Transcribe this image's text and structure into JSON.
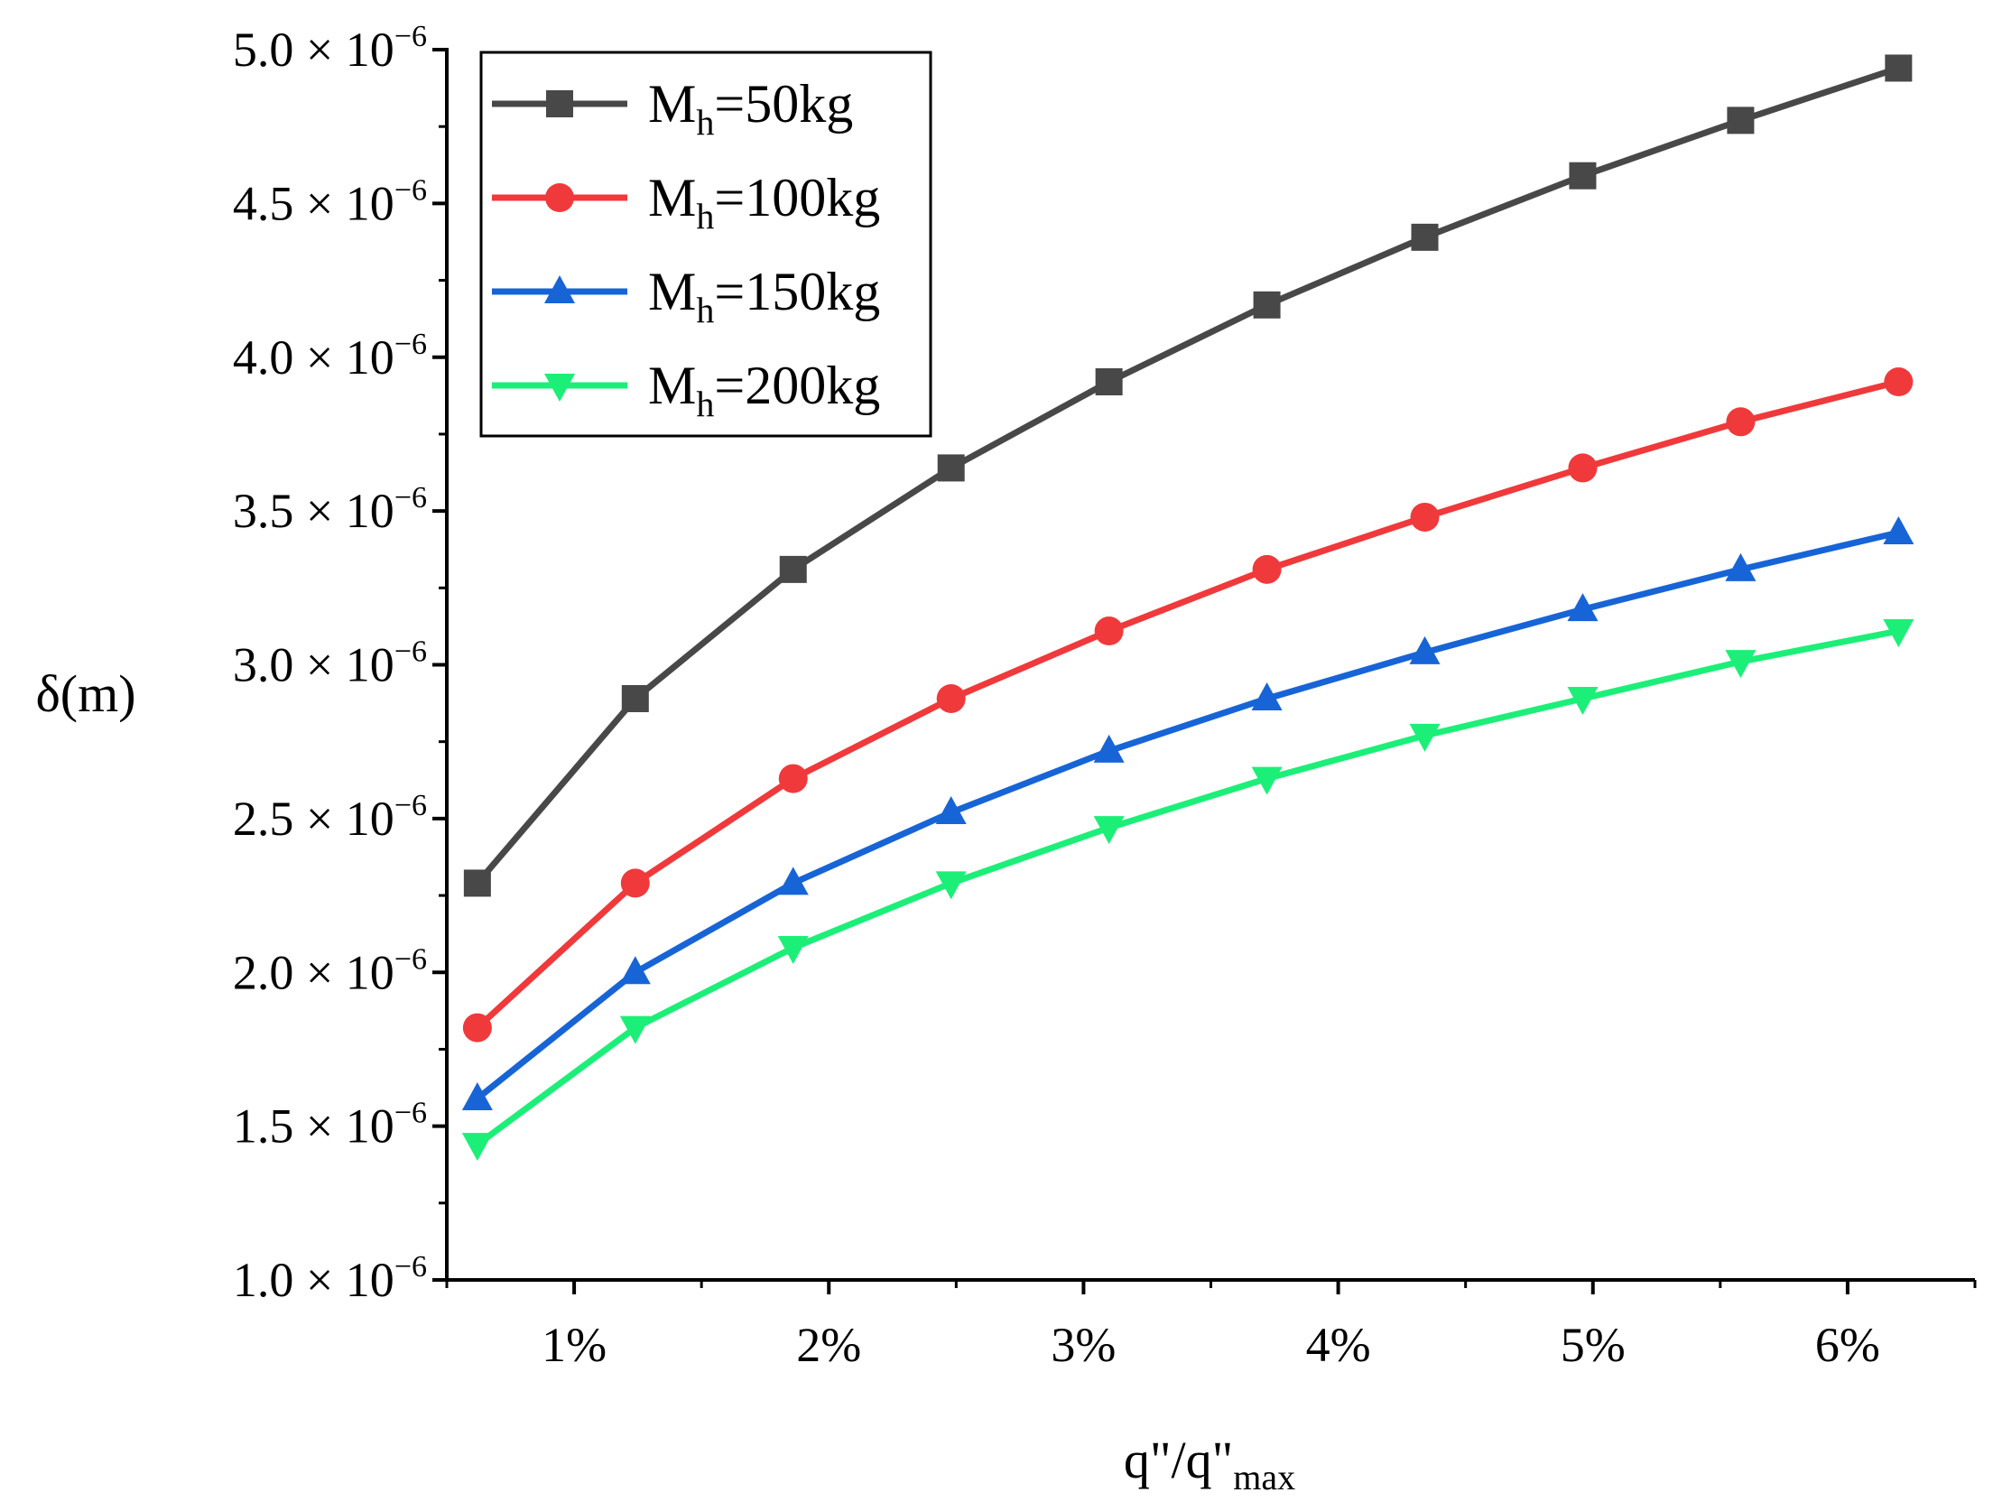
{
  "chart_data": {
    "type": "line",
    "x": [
      0.62,
      1.24,
      1.86,
      2.48,
      3.1,
      3.72,
      4.34,
      4.96,
      5.58,
      6.2
    ],
    "series": [
      {
        "name": "50kg",
        "label_prefix": "M",
        "label_sub": "h",
        "label_eq": "=",
        "color": "#484848",
        "marker": "square",
        "values": [
          2.29,
          2.89,
          3.31,
          3.64,
          3.92,
          4.17,
          4.39,
          4.59,
          4.77,
          4.94
        ]
      },
      {
        "name": "100kg",
        "label_prefix": "M",
        "label_sub": "h",
        "label_eq": "=",
        "color": "#f0393b",
        "marker": "circle",
        "values": [
          1.82,
          2.29,
          2.63,
          2.89,
          3.11,
          3.31,
          3.48,
          3.64,
          3.79,
          3.92
        ]
      },
      {
        "name": "150kg",
        "label_prefix": "M",
        "label_sub": "h",
        "label_eq": "=",
        "color": "#1764d7",
        "marker": "triangle-up",
        "values": [
          1.59,
          2.0,
          2.29,
          2.52,
          2.72,
          2.89,
          3.04,
          3.18,
          3.31,
          3.43
        ]
      },
      {
        "name": "200kg",
        "label_prefix": "M",
        "label_sub": "h",
        "label_eq": "=",
        "color": "#1cef78",
        "marker": "triangle-down",
        "values": [
          1.44,
          1.82,
          2.08,
          2.29,
          2.47,
          2.63,
          2.77,
          2.89,
          3.01,
          3.11
        ]
      }
    ],
    "x_ticks": [
      1,
      2,
      3,
      4,
      5,
      6
    ],
    "x_tick_labels": [
      "1%",
      "2%",
      "3%",
      "4%",
      "5%",
      "6%"
    ],
    "xlim": [
      0.5,
      6.5
    ],
    "y_ticks": [
      1.0,
      1.5,
      2.0,
      2.5,
      3.0,
      3.5,
      4.0,
      4.5,
      5.0
    ],
    "y_tick_mantissas": [
      "1.0",
      "1.5",
      "2.0",
      "2.5",
      "3.0",
      "3.5",
      "4.0",
      "4.5",
      "5.0"
    ],
    "y_tick_times": "× 10",
    "y_tick_exponent": "−6",
    "ylim": [
      1.0,
      5.0
    ],
    "ylabel": "δ(m)",
    "xlabel_main": "q\"/q\"",
    "xlabel_sub": "max",
    "legend_position": "top-left"
  }
}
